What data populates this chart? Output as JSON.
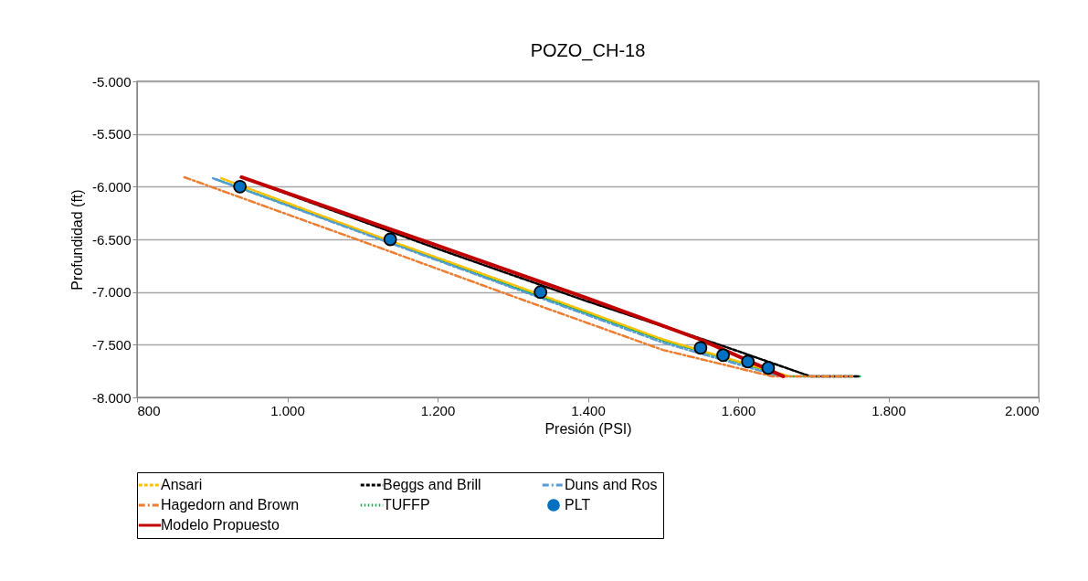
{
  "chart_data": {
    "type": "line",
    "title": "POZO_CH-18",
    "xlabel": "Presión (PSI)",
    "ylabel": "Profundidad (ft)",
    "xlim": [
      800,
      2000
    ],
    "xticks": [
      800,
      {
        "value": 1000,
        "label": "1.000"
      },
      {
        "value": 1200,
        "label": "1.200"
      },
      {
        "value": 1400,
        "label": "1.400"
      },
      {
        "value": 1600,
        "label": "1.600"
      },
      {
        "value": 1800,
        "label": "1.800"
      },
      {
        "value": 2000,
        "label": "2.000"
      }
    ],
    "ylim": [
      -8000,
      -5000
    ],
    "yticks": [
      {
        "value": -8000,
        "label": "-8.000"
      },
      {
        "value": -7500,
        "label": "-7.500"
      },
      {
        "value": -7000,
        "label": "-7.000"
      },
      {
        "value": -6500,
        "label": "-6.500"
      },
      {
        "value": -6000,
        "label": "-6.000"
      },
      {
        "value": -5500,
        "label": "-5.500"
      },
      {
        "value": -5000,
        "label": "-5.000"
      }
    ],
    "grid": "y",
    "legend": "bottom",
    "marker": "none",
    "series": [
      {
        "name": "Ansari",
        "color": "#ffc000",
        "line_style": "dashed",
        "x": [
          912,
          1100,
          1300,
          1500,
          1668
        ],
        "values": [
          -5920,
          -6420,
          -6930,
          -7450,
          -7800
        ]
      },
      {
        "name": "Beggs and Brill",
        "color": "#000000",
        "line_style": "dashed",
        "x": [
          939,
          1200,
          1400,
          1575,
          1696,
          1760
        ],
        "values": [
          -5910,
          -6590,
          -7090,
          -7500,
          -7800,
          -7800
        ]
      },
      {
        "name": "Duns and Ros",
        "color": "#5b9bd5",
        "line_style": "dashdot",
        "x": [
          901,
          1100,
          1300,
          1500,
          1650
        ],
        "values": [
          -5920,
          -6440,
          -6960,
          -7480,
          -7790
        ]
      },
      {
        "name": "Hagedorn and Brown",
        "color": "#ed7d31",
        "line_style": "dashdot",
        "x": [
          863,
          1100,
          1300,
          1500,
          1645,
          1752
        ],
        "values": [
          -5910,
          -6520,
          -7040,
          -7550,
          -7800,
          -7800
        ]
      },
      {
        "name": "TUFFP",
        "color": "#00b050",
        "line_style": "dotted",
        "x": [
          905,
          1100,
          1300,
          1500,
          1665,
          1762
        ],
        "values": [
          -5930,
          -6430,
          -6950,
          -7460,
          -7800,
          -7800
        ]
      },
      {
        "name": "PLT",
        "type": "scatter",
        "marker": "circle",
        "color": "#0070c0",
        "x": [
          937,
          1137,
          1337,
          1550,
          1580,
          1613,
          1640
        ],
        "values": [
          -6000,
          -6500,
          -7000,
          -7530,
          -7600,
          -7660,
          -7720
        ]
      },
      {
        "name": "Modelo Propuesto",
        "color": "#c00000",
        "line_style": "solid",
        "x": [
          939,
          1200,
          1400,
          1550,
          1660
        ],
        "values": [
          -5910,
          -6560,
          -7060,
          -7450,
          -7800
        ]
      }
    ]
  }
}
